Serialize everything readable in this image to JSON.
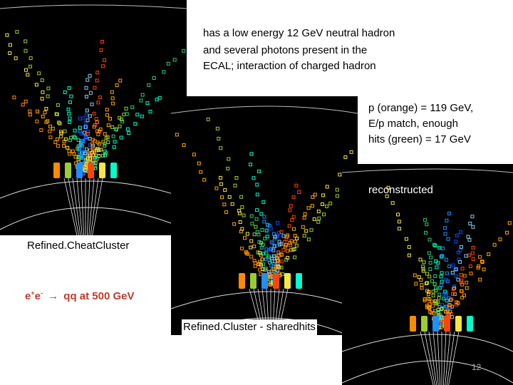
{
  "annotations": {
    "top_text": [
      "has a low energy 12 GeV neutral hadron",
      "and several photons present in the",
      "ECAL; interaction of charged hadron"
    ],
    "right_text": [
      "p (orange) = 119 GeV,",
      "E/p match,  enough",
      "hits  (green) = 17 GeV"
    ],
    "reconstructed_label": "reconstructed",
    "left_label": "Refined.CheatCluster",
    "middle_label": "Refined.Cluster - sharedhits",
    "process_prefix": "e",
    "process_plus": "+",
    "process_e2": "e",
    "process_minus": "-",
    "process_suffix": "qq  at 500 GeV",
    "arrow_glyph": "→",
    "page_number": "12"
  },
  "colors": {
    "panel_background": "#000000",
    "event_display_colors": [
      "#ff8c00",
      "#ffa500",
      "#f5e642",
      "#9acd32",
      "#2ecc71",
      "#00ffcc",
      "#1e90ff",
      "#0050ff",
      "#87ceeb",
      "#ff4500"
    ],
    "process_text": "#c0392b"
  }
}
